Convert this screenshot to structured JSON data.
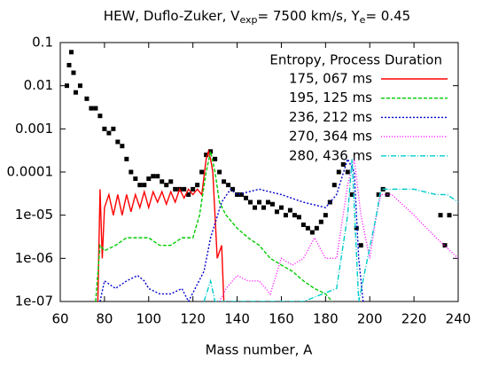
{
  "chart_data": {
    "type": "line",
    "title": [
      "HEW, Duflo-Zuker, V",
      "exp",
      "= 7500 km/s, Y",
      "e",
      "= 0.45"
    ],
    "x_label": "Mass number, A",
    "legend_title": "Entropy, Process Duration",
    "legend": "upper right",
    "log_y": true,
    "xlim": [
      60,
      240
    ],
    "xticks": [
      60,
      80,
      100,
      120,
      140,
      160,
      180,
      200,
      220,
      240
    ],
    "ylim": [
      1e-07,
      0.1
    ],
    "yticks": [
      {
        "value": 0.1,
        "label": "0.1"
      },
      {
        "value": 0.01,
        "label": "0.01"
      },
      {
        "value": 0.001,
        "label": "0.001"
      },
      {
        "value": 0.0001,
        "label": "0.0001"
      },
      {
        "value": 1e-05,
        "label": "1e-05"
      },
      {
        "value": 1e-06,
        "label": "1e-06"
      },
      {
        "value": 1e-07,
        "label": "1e-07"
      }
    ],
    "series": [
      {
        "name": "175, 067 ms",
        "color": "#ff0000",
        "dash": "",
        "x": [
          77,
          78,
          79,
          80,
          82,
          84,
          86,
          88,
          90,
          92,
          94,
          96,
          98,
          100,
          102,
          104,
          106,
          108,
          110,
          112,
          114,
          116,
          118,
          120,
          122,
          124,
          126,
          127,
          128,
          129,
          130,
          131,
          133,
          134
        ],
        "values": [
          1e-07,
          4e-05,
          1e-06,
          1.5e-05,
          3e-05,
          1e-05,
          3e-05,
          1e-05,
          3e-05,
          1.2e-05,
          3e-05,
          1.5e-05,
          3.5e-05,
          1.5e-05,
          3.5e-05,
          2e-05,
          3.5e-05,
          1.8e-05,
          3.5e-05,
          2e-05,
          4e-05,
          2.5e-05,
          4e-05,
          3e-05,
          4e-05,
          3e-05,
          0.0002,
          0.0003,
          0.0002,
          0.0001,
          1e-05,
          1e-06,
          2e-06,
          1e-07
        ]
      },
      {
        "name": "195, 125 ms",
        "color": "#00cc00",
        "dash": "4,2",
        "x": [
          76,
          78,
          80,
          85,
          90,
          95,
          100,
          105,
          110,
          115,
          120,
          123,
          126,
          128,
          130,
          132,
          135,
          140,
          145,
          150,
          155,
          160,
          165,
          170,
          175,
          180,
          183
        ],
        "values": [
          1e-07,
          2e-06,
          1.5e-06,
          2e-06,
          3e-06,
          3e-06,
          3e-06,
          2e-06,
          2e-06,
          3e-06,
          3e-06,
          1e-05,
          0.0001,
          0.0003,
          0.0001,
          2e-05,
          1e-05,
          5e-06,
          3e-06,
          2e-06,
          1e-06,
          7e-07,
          5e-07,
          3e-07,
          2e-07,
          1.5e-07,
          1e-07
        ]
      },
      {
        "name": "236, 212 ms",
        "color": "#0000cc",
        "dash": "2,2",
        "x": [
          78,
          80,
          85,
          90,
          95,
          98,
          100,
          105,
          110,
          115,
          118,
          125,
          128,
          133,
          137,
          140,
          150,
          160,
          170,
          180,
          185,
          190,
          193,
          195,
          197
        ],
        "values": [
          1e-07,
          3e-07,
          2e-07,
          3e-07,
          4e-07,
          3e-07,
          2e-07,
          1.5e-07,
          1.5e-07,
          2e-07,
          1e-07,
          5e-07,
          3e-06,
          2e-05,
          4e-05,
          3e-05,
          4e-05,
          3e-05,
          2e-05,
          1.5e-05,
          3e-05,
          0.0002,
          0.0001,
          1e-06,
          1e-07
        ]
      },
      {
        "name": "270, 364 ms",
        "color": "#ff00ff",
        "dash": "1,2",
        "x": [
          132,
          135,
          140,
          145,
          150,
          155,
          160,
          165,
          170,
          175,
          180,
          185,
          190,
          193,
          196,
          200,
          203,
          205,
          210,
          220,
          230,
          240
        ],
        "values": [
          1e-07,
          2e-07,
          4e-07,
          3e-07,
          3e-07,
          1.5e-07,
          1e-06,
          7e-07,
          1e-06,
          3e-06,
          1e-06,
          1e-06,
          5e-05,
          0.0002,
          1e-05,
          1e-06,
          1e-05,
          3e-05,
          3e-05,
          1e-05,
          3e-06,
          1e-06
        ]
      },
      {
        "name": "280, 436 ms",
        "color": "#00cccc",
        "dash": "6,2,1,2",
        "x": [
          125,
          128,
          130,
          170,
          185,
          190,
          192,
          195,
          203,
          205,
          210,
          220,
          230,
          235,
          240
        ],
        "values": [
          1e-07,
          3e-07,
          1e-07,
          1e-07,
          2e-07,
          1e-05,
          0.0002,
          1e-07,
          1e-05,
          4e-05,
          4e-05,
          4e-05,
          3e-05,
          3e-05,
          2e-05
        ]
      }
    ],
    "points": {
      "color": "#000000",
      "x": [
        63,
        64,
        65,
        66,
        67,
        69,
        72,
        74,
        76,
        78,
        80,
        82,
        84,
        86,
        88,
        90,
        92,
        94,
        96,
        98,
        100,
        102,
        104,
        106,
        108,
        110,
        112,
        114,
        116,
        118,
        120,
        122,
        124,
        126,
        128,
        130,
        132,
        134,
        136,
        138,
        140,
        142,
        144,
        146,
        148,
        150,
        152,
        154,
        156,
        158,
        160,
        162,
        164,
        166,
        168,
        170,
        172,
        174,
        176,
        178,
        180,
        182,
        184,
        186,
        188,
        190,
        192,
        194,
        196,
        204,
        206,
        208,
        232,
        234,
        236
      ],
      "values": [
        0.01,
        0.03,
        0.06,
        0.02,
        0.007,
        0.01,
        0.005,
        0.003,
        0.003,
        0.002,
        0.001,
        0.0008,
        0.001,
        0.0005,
        0.0004,
        0.0002,
        0.0001,
        7e-05,
        5e-05,
        5e-05,
        7e-05,
        8e-05,
        8e-05,
        6e-05,
        5e-05,
        6e-05,
        4e-05,
        4e-05,
        4e-05,
        3e-05,
        4e-05,
        5e-05,
        0.0001,
        0.00025,
        0.0003,
        0.0002,
        0.0001,
        6e-05,
        5e-05,
        4e-05,
        3e-05,
        3e-05,
        2.5e-05,
        2e-05,
        1.5e-05,
        2e-05,
        1.5e-05,
        2e-05,
        1.8e-05,
        1.2e-05,
        1.5e-05,
        1e-05,
        1.3e-05,
        1e-05,
        9e-06,
        6e-06,
        5e-06,
        4e-06,
        5e-06,
        7e-06,
        1e-05,
        2e-05,
        5e-05,
        0.0001,
        0.00015,
        0.0001,
        3e-05,
        5e-06,
        2e-06,
        3e-05,
        4e-05,
        3e-05,
        1e-05,
        2e-06,
        1e-05
      ]
    }
  }
}
